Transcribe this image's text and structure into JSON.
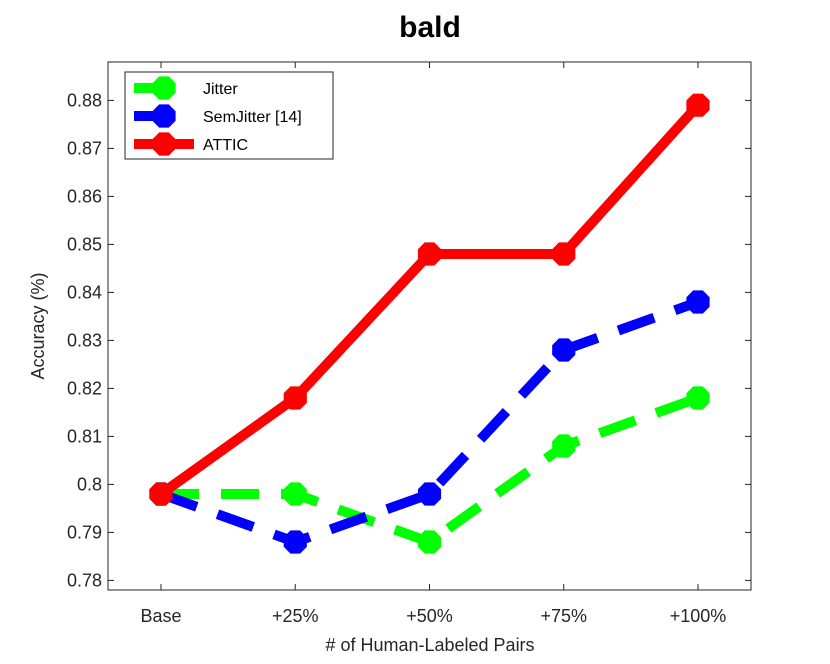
{
  "chart_data": {
    "type": "line",
    "title": "bald",
    "xlabel": "# of Human-Labeled Pairs",
    "ylabel": "Accuracy (%)",
    "categories": [
      "Base",
      "+25%",
      "+50%",
      "+75%",
      "+100%"
    ],
    "ylim": [
      0.778,
      0.888
    ],
    "yticks": [
      0.78,
      0.79,
      0.8,
      0.81,
      0.82,
      0.83,
      0.84,
      0.85,
      0.86,
      0.87,
      0.88
    ],
    "ytick_labels": [
      "0.78",
      "0.79",
      "0.8",
      "0.81",
      "0.82",
      "0.83",
      "0.84",
      "0.85",
      "0.86",
      "0.87",
      "0.88"
    ],
    "grid": false,
    "legend_position": "top-left",
    "series": [
      {
        "name": "Jitter",
        "color": "#00ff00",
        "style": "dashed",
        "values": [
          0.798,
          0.798,
          0.788,
          0.808,
          0.818
        ]
      },
      {
        "name": "SemJitter [14]",
        "color": "#0000ff",
        "style": "dashed",
        "values": [
          0.798,
          0.788,
          0.798,
          0.828,
          0.838
        ]
      },
      {
        "name": "ATTIC",
        "color": "#ff0000",
        "style": "solid",
        "values": [
          0.798,
          0.818,
          0.848,
          0.848,
          0.879
        ]
      }
    ]
  }
}
